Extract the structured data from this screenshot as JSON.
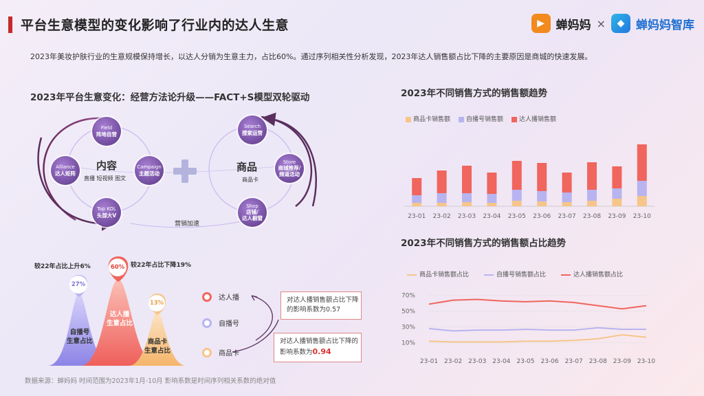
{
  "header": {
    "title": "平台生意模型的变化影响了行业内的达人生意",
    "brand1": "蝉妈妈",
    "times": "×",
    "brand2": "蝉妈妈智库"
  },
  "intro": "2023年美妆护肤行业的生意规模保持增长，以达人分销为生意主力，占比60%。通过序列相关性分析发现，2023年达人销售额占比下降的主要原因是商城的快速发展。",
  "left": {
    "title": "2023年平台生意变化：经营方法论升级——FACT+S模型双轮驱动",
    "content_label": "内容",
    "content_sub": "直播 短视频 图文",
    "goods_label": "商品",
    "goods_sub": "商品卡",
    "marketing": "营销加速",
    "nodes": {
      "field": {
        "en": "Field",
        "cn": "阵地自营"
      },
      "alliance": {
        "en": "Alliance",
        "cn": "达人矩阵"
      },
      "campaign": {
        "en": "Campaign",
        "cn": "主题活动"
      },
      "topkol": {
        "en": "Top KOL",
        "cn": "头部大V"
      },
      "search": {
        "en": "Search",
        "cn": "搜索运营"
      },
      "store": {
        "en": "Store",
        "cn": "商城推荐/\n频道活动"
      },
      "shop": {
        "en": "Shop",
        "cn": "店铺/\n达人橱窗"
      }
    }
  },
  "bottom": {
    "note_up": "较22年占比上升6%",
    "note_down": "较22年占比下降19%",
    "pct_self": "27%",
    "pct_kol": "60%",
    "pct_card": "13%",
    "label_self": "自播号\n生意占比",
    "label_kol": "达人播\n生意占比",
    "label_card": "商品卡\n生意占比",
    "legend": [
      "达人播",
      "自播号",
      "商品卡"
    ],
    "box1_text": "对达人播销售额占比下降\n的影响系数为",
    "box1_value": "0.57",
    "box2_text": "对达人播销售额占比下降的\n影响系数为",
    "box2_value": "0.94",
    "footer": "数据来源：蝉妈妈    时间范围为2023年1月-10月    影响系数是时间序列相关系数的绝对值"
  },
  "colors": {
    "card": "#f6c58a",
    "self": "#b7b4f0",
    "kol": "#f0655d"
  },
  "chart_data": [
    {
      "type": "bar",
      "title": "2023年不同销售方式的销售额趋势",
      "stacked": true,
      "categories": [
        "23-01",
        "23-02",
        "23-03",
        "23-04",
        "23-05",
        "23-06",
        "23-07",
        "23-08",
        "23-09",
        "23-10"
      ],
      "series": [
        {
          "name": "商品卡销售额",
          "values": [
            5,
            5,
            6,
            5,
            8,
            7,
            6,
            8,
            11,
            15
          ]
        },
        {
          "name": "自播号销售额",
          "values": [
            11,
            14,
            13,
            13,
            16,
            15,
            14,
            16,
            15,
            22
          ]
        },
        {
          "name": "达人播销售额",
          "values": [
            25,
            33,
            40,
            31,
            42,
            41,
            29,
            40,
            32,
            53
          ]
        }
      ],
      "ylim": [
        0,
        100
      ]
    },
    {
      "type": "line",
      "title": "2023年不同销售方式的销售额占比趋势",
      "categories": [
        "23-01",
        "23-02",
        "23-03",
        "23-04",
        "23-05",
        "23-06",
        "23-07",
        "23-08",
        "23-09",
        "23-10"
      ],
      "yticks": [
        "70%",
        "50%",
        "30%",
        "10%"
      ],
      "ylim": [
        0,
        75
      ],
      "series": [
        {
          "name": "商品卡销售额占比",
          "values": [
            12,
            11,
            11,
            11,
            12,
            12,
            13,
            15,
            20,
            17
          ]
        },
        {
          "name": "自播号销售额占比",
          "values": [
            28,
            25,
            26,
            26,
            27,
            26,
            26,
            29,
            27,
            27
          ]
        },
        {
          "name": "达人播销售额占比",
          "values": [
            59,
            64,
            65,
            63,
            62,
            63,
            61,
            57,
            53,
            57
          ]
        }
      ]
    }
  ]
}
